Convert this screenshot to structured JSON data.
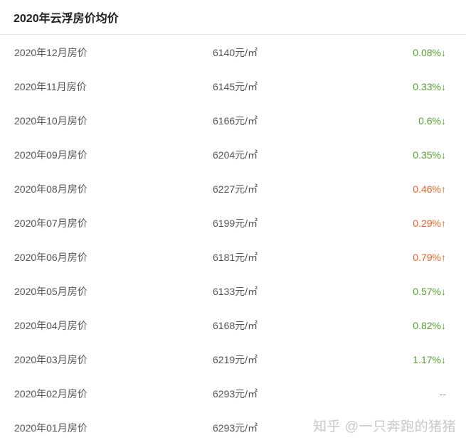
{
  "header": {
    "title": "2020年云浮房价均价"
  },
  "colors": {
    "down": "#5a9e2f",
    "up": "#e8611f",
    "none": "#999999"
  },
  "rows": [
    {
      "month": "2020年12月房价",
      "price": "6140元/㎡",
      "change": "0.08%↓",
      "trend": "down"
    },
    {
      "month": "2020年11月房价",
      "price": "6145元/㎡",
      "change": "0.33%↓",
      "trend": "down"
    },
    {
      "month": "2020年10月房价",
      "price": "6166元/㎡",
      "change": "0.6%↓",
      "trend": "down"
    },
    {
      "month": "2020年09月房价",
      "price": "6204元/㎡",
      "change": "0.35%↓",
      "trend": "down"
    },
    {
      "month": "2020年08月房价",
      "price": "6227元/㎡",
      "change": "0.46%↑",
      "trend": "up"
    },
    {
      "month": "2020年07月房价",
      "price": "6199元/㎡",
      "change": "0.29%↑",
      "trend": "up"
    },
    {
      "month": "2020年06月房价",
      "price": "6181元/㎡",
      "change": "0.79%↑",
      "trend": "up"
    },
    {
      "month": "2020年05月房价",
      "price": "6133元/㎡",
      "change": "0.57%↓",
      "trend": "down"
    },
    {
      "month": "2020年04月房价",
      "price": "6168元/㎡",
      "change": "0.82%↓",
      "trend": "down"
    },
    {
      "month": "2020年03月房价",
      "price": "6219元/㎡",
      "change": "1.17%↓",
      "trend": "down"
    },
    {
      "month": "2020年02月房价",
      "price": "6293元/㎡",
      "change": "--",
      "trend": "none"
    },
    {
      "month": "2020年01月房价",
      "price": "6293元/㎡",
      "change": "",
      "trend": "none"
    }
  ],
  "watermark": "知乎 @一只奔跑的猪猪"
}
